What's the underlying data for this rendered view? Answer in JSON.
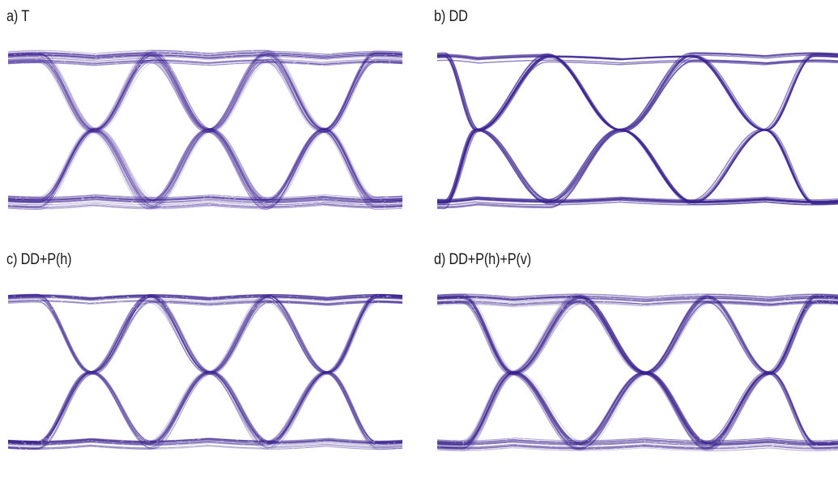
{
  "figure": {
    "trace_color": "#3a2290",
    "panels": [
      {
        "id": "a",
        "label": "a) T",
        "style": "noisy"
      },
      {
        "id": "b",
        "label": "b) DD",
        "style": "clean"
      },
      {
        "id": "c",
        "label": "c) DD+P(h)",
        "style": "medium"
      },
      {
        "id": "d",
        "label": "d) DD+P(h)+P(v)",
        "style": "medium-noisy"
      }
    ]
  }
}
